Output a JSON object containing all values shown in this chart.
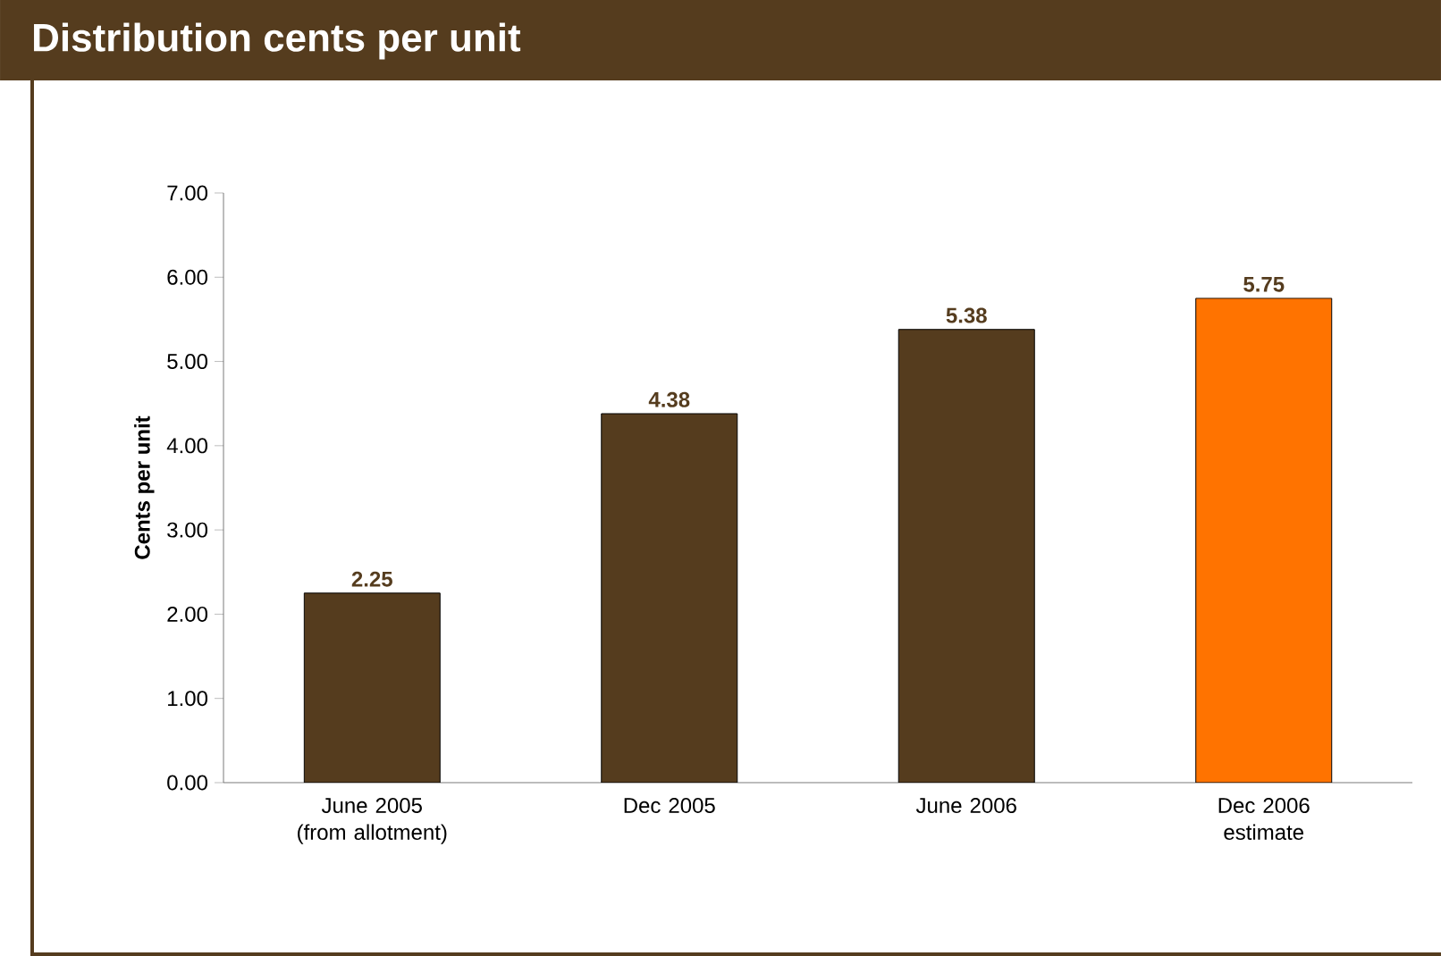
{
  "chart_data": {
    "type": "bar",
    "title": "Distribution cents per unit",
    "ylabel": "Cents per unit",
    "categories": [
      "June 2005 (from allotment)",
      "Dec 2005",
      "June 2006",
      "Dec 2006 estimate"
    ],
    "values": [
      2.25,
      4.38,
      5.38,
      5.75
    ],
    "colors": [
      "#553c1e",
      "#553c1e",
      "#553c1e",
      "#ff7300"
    ],
    "ylim": [
      0,
      7
    ],
    "yticks": [
      {
        "value": 0,
        "label": "0.00"
      },
      {
        "value": 1,
        "label": "1.00"
      },
      {
        "value": 2,
        "label": "2.00"
      },
      {
        "value": 3,
        "label": "3.00"
      },
      {
        "value": 4,
        "label": "4.00"
      },
      {
        "value": 5,
        "label": "5.00"
      },
      {
        "value": 6,
        "label": "6.00"
      },
      {
        "value": 7,
        "label": "7.00"
      }
    ],
    "data_labels": true,
    "grid": false
  }
}
